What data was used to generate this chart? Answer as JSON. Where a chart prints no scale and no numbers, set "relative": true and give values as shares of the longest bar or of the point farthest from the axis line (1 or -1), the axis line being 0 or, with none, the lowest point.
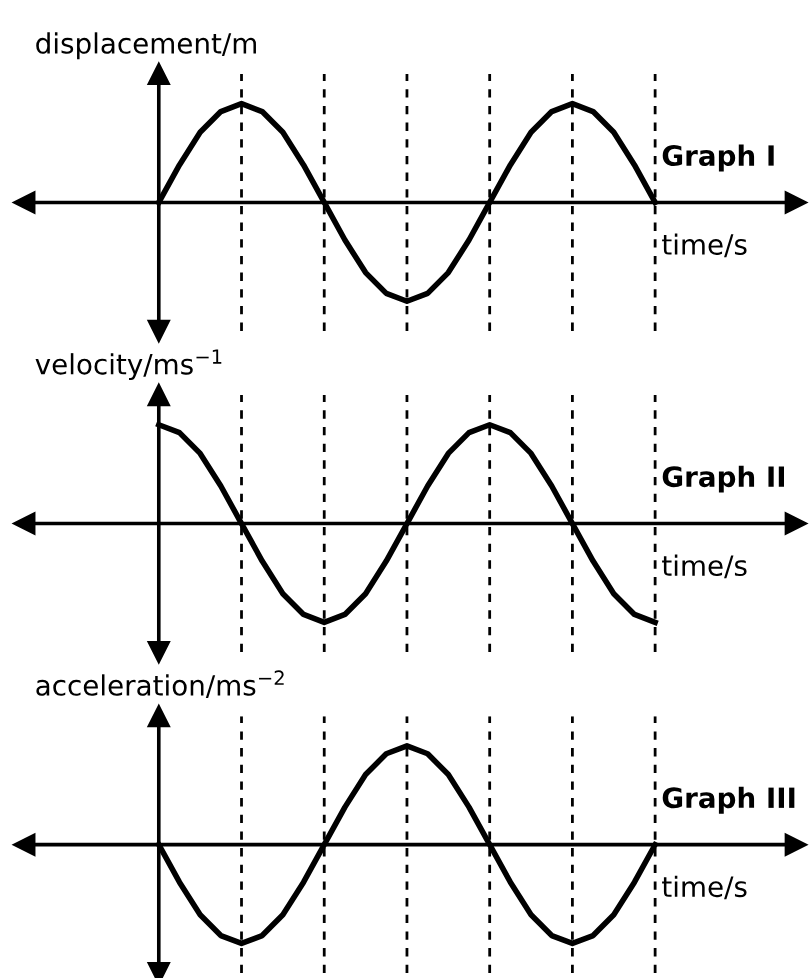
{
  "chart_data": [
    {
      "type": "line",
      "relative": true,
      "ylabel": "displacement/m",
      "xlabel": "time/s",
      "tick_labels": false,
      "grid": "x",
      "categories": [
        null,
        null,
        null,
        null,
        null,
        null,
        null,
        null,
        null,
        null,
        null,
        null,
        null,
        null,
        null,
        null,
        null,
        null,
        null,
        null,
        null,
        null,
        null,
        null,
        null
      ],
      "series": [
        {
          "name": "Graph I",
          "color": "#000000",
          "values": [
            0,
            0.38,
            0.71,
            0.92,
            1,
            0.92,
            0.71,
            0.38,
            0,
            -0.38,
            -0.71,
            -0.92,
            -1,
            -0.92,
            -0.71,
            -0.38,
            0,
            0.38,
            0.71,
            0.92,
            1,
            0.92,
            0.71,
            0.38,
            0
          ]
        }
      ]
    },
    {
      "type": "line",
      "relative": true,
      "ylabel": "velocity/ms$^{−1}$",
      "xlabel": "time/s",
      "tick_labels": false,
      "grid": "x",
      "categories": [
        null,
        null,
        null,
        null,
        null,
        null,
        null,
        null,
        null,
        null,
        null,
        null,
        null,
        null,
        null,
        null,
        null,
        null,
        null,
        null,
        null,
        null,
        null,
        null,
        null
      ],
      "series": [
        {
          "name": "Graph II",
          "color": "#000000",
          "values": [
            1,
            0.92,
            0.71,
            0.38,
            0,
            -0.38,
            -0.71,
            -0.92,
            -1,
            -0.92,
            -0.71,
            -0.38,
            0,
            0.38,
            0.71,
            0.92,
            1,
            0.92,
            0.71,
            0.38,
            0,
            -0.38,
            -0.71,
            -0.92,
            -1
          ]
        }
      ]
    },
    {
      "type": "line",
      "relative": true,
      "ylabel": "acceleration/ms$^{−2}$",
      "xlabel": "time/s",
      "tick_labels": false,
      "grid": "x",
      "categories": [
        null,
        null,
        null,
        null,
        null,
        null,
        null,
        null,
        null,
        null,
        null,
        null,
        null,
        null,
        null,
        null,
        null,
        null,
        null,
        null,
        null,
        null,
        null,
        null,
        null
      ],
      "series": [
        {
          "name": "Graph III",
          "color": "#000000",
          "values": [
            0,
            -0.38,
            -0.71,
            -0.92,
            -1,
            -0.92,
            -0.71,
            -0.38,
            0,
            0.38,
            0.71,
            0.92,
            1,
            0.92,
            0.71,
            0.38,
            0,
            -0.38,
            -0.71,
            -0.92,
            -1,
            -0.92,
            -0.71,
            -0.38,
            0
          ]
        }
      ]
    }
  ]
}
